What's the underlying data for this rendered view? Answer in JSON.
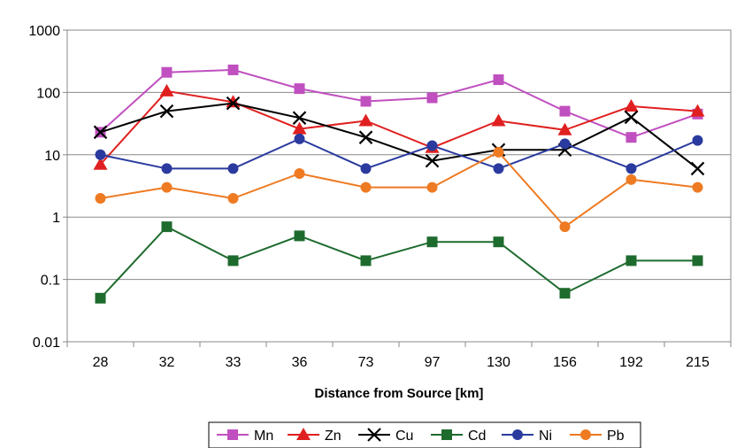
{
  "chart_data": {
    "type": "line",
    "title": "",
    "xlabel": "Distance from Source [km]",
    "ylabel": "",
    "y_scale": "log",
    "ylim": [
      0.01,
      1000
    ],
    "y_ticks": [
      "0.01",
      "0.1",
      "1",
      "10",
      "100",
      "1000"
    ],
    "categories": [
      "28",
      "32",
      "33",
      "36",
      "73",
      "97",
      "130",
      "156",
      "192",
      "215"
    ],
    "grid": "horizontal",
    "legend_position": "bottom",
    "series": [
      {
        "name": "Mn",
        "color": "#c050c0",
        "marker": "square",
        "values": [
          23,
          210,
          230,
          115,
          72,
          82,
          160,
          50,
          19,
          45
        ]
      },
      {
        "name": "Zn",
        "color": "#e02020",
        "marker": "triangle",
        "values": [
          7,
          105,
          70,
          26,
          35,
          13,
          35,
          25,
          60,
          50
        ]
      },
      {
        "name": "Cu",
        "color": "#000000",
        "marker": "x",
        "values": [
          23,
          50,
          67,
          39,
          19,
          8,
          12,
          12,
          40,
          6
        ]
      },
      {
        "name": "Cd",
        "color": "#1e6b2e",
        "marker": "square",
        "values": [
          0.05,
          0.7,
          0.2,
          0.5,
          0.2,
          0.4,
          0.4,
          0.06,
          0.2,
          0.2
        ]
      },
      {
        "name": "Ni",
        "color": "#2a3a9e",
        "marker": "circle",
        "values": [
          10,
          6,
          6,
          18,
          6,
          14,
          6,
          15,
          6,
          17
        ]
      },
      {
        "name": "Pb",
        "color": "#ee7a22",
        "marker": "circle",
        "values": [
          2,
          3,
          2,
          5,
          3,
          3,
          11,
          0.7,
          4,
          3
        ]
      }
    ]
  }
}
